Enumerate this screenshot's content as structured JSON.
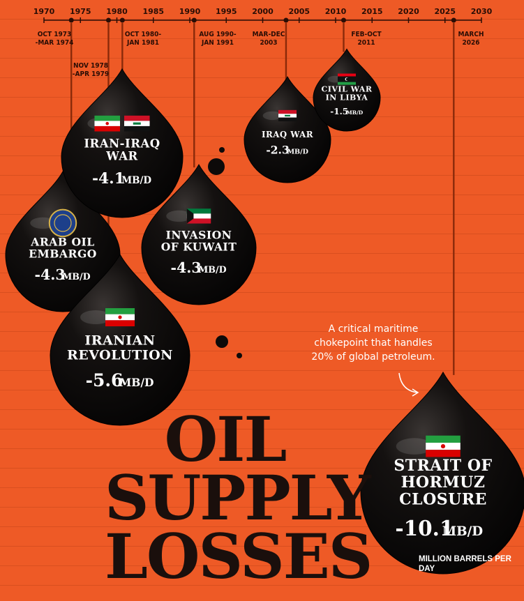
{
  "chart_data": {
    "type": "timeline-bubble",
    "title": "OIL SUPPLY LOSSES",
    "title_lines": [
      "OIL",
      "SUPPLY",
      "LOSSES"
    ],
    "x_axis": {
      "ticks": [
        1970,
        1975,
        1980,
        1985,
        1990,
        1995,
        2000,
        2005,
        2010,
        2015,
        2020,
        2025,
        2030
      ],
      "range": [
        1970,
        2030
      ]
    },
    "unit_label": "MILLION BARRELS PER DAY",
    "annotation": "A critical maritime chokepoint that handles 20% of global petroleum.",
    "annotation_lines": [
      "A critical maritime",
      "chokepoint that handles",
      "20% of global petroleum."
    ],
    "events": [
      {
        "name_lines": [
          "ARAB OIL",
          "EMBARGO"
        ],
        "period_lines": [
          "OCT 1973",
          "-MAR 1974"
        ],
        "value": -4.3,
        "value_label": "-4.3",
        "unit_short": "MB/D",
        "start": 1973.75,
        "flags": [
          "opec-seal-icon"
        ]
      },
      {
        "name_lines": [
          "IRANIAN",
          "REVOLUTION"
        ],
        "period_lines": [
          "NOV 1978",
          "-APR 1979"
        ],
        "value": -5.6,
        "value_label": "-5.6",
        "unit_short": "MB/D",
        "start": 1978.85,
        "flags": [
          "iran-flag-icon"
        ]
      },
      {
        "name_lines": [
          "IRAN-IRAQ",
          "WAR"
        ],
        "period_lines": [
          "OCT 1980-",
          "JAN 1981"
        ],
        "value": -4.1,
        "value_label": "-4.1",
        "unit_short": "MB/D",
        "start": 1980.75,
        "flags": [
          "iran-flag-icon",
          "iraq-flag-icon"
        ]
      },
      {
        "name_lines": [
          "INVASION",
          "OF KUWAIT"
        ],
        "period_lines": [
          "AUG 1990-",
          "JAN 1991"
        ],
        "value": -4.3,
        "value_label": "-4.3",
        "unit_short": "MB/D",
        "start": 1990.6,
        "flags": [
          "kuwait-flag-icon"
        ]
      },
      {
        "name_lines": [
          "IRAQ WAR"
        ],
        "period_lines": [
          "MAR-DEC",
          "2003"
        ],
        "value": -2.3,
        "value_label": "-2.3",
        "unit_short": "MB/D",
        "start": 2003.2,
        "flags": [
          "iraq-flag-icon"
        ]
      },
      {
        "name_lines": [
          "CIVIL WAR",
          "IN LIBYA"
        ],
        "period_lines": [
          "FEB-OCT",
          "2011"
        ],
        "value": -1.5,
        "value_label": "-1.5",
        "unit_short": "MB/D",
        "start": 2011.1,
        "flags": [
          "libya-flag-icon"
        ]
      },
      {
        "name_lines": [
          "STRAIT OF",
          "HORMUZ",
          "CLOSURE"
        ],
        "period_lines": [
          "MARCH",
          "2026"
        ],
        "value": -10.1,
        "value_label": "-10.1",
        "unit_short": "MB/D",
        "start": 2026.2,
        "flags": [
          "iran-flag-icon"
        ]
      }
    ]
  },
  "colors": {
    "background": "#ee5a26",
    "drop": "#0d0a09",
    "text_dark": "#2a0d05",
    "line": "#8a2a0a"
  }
}
